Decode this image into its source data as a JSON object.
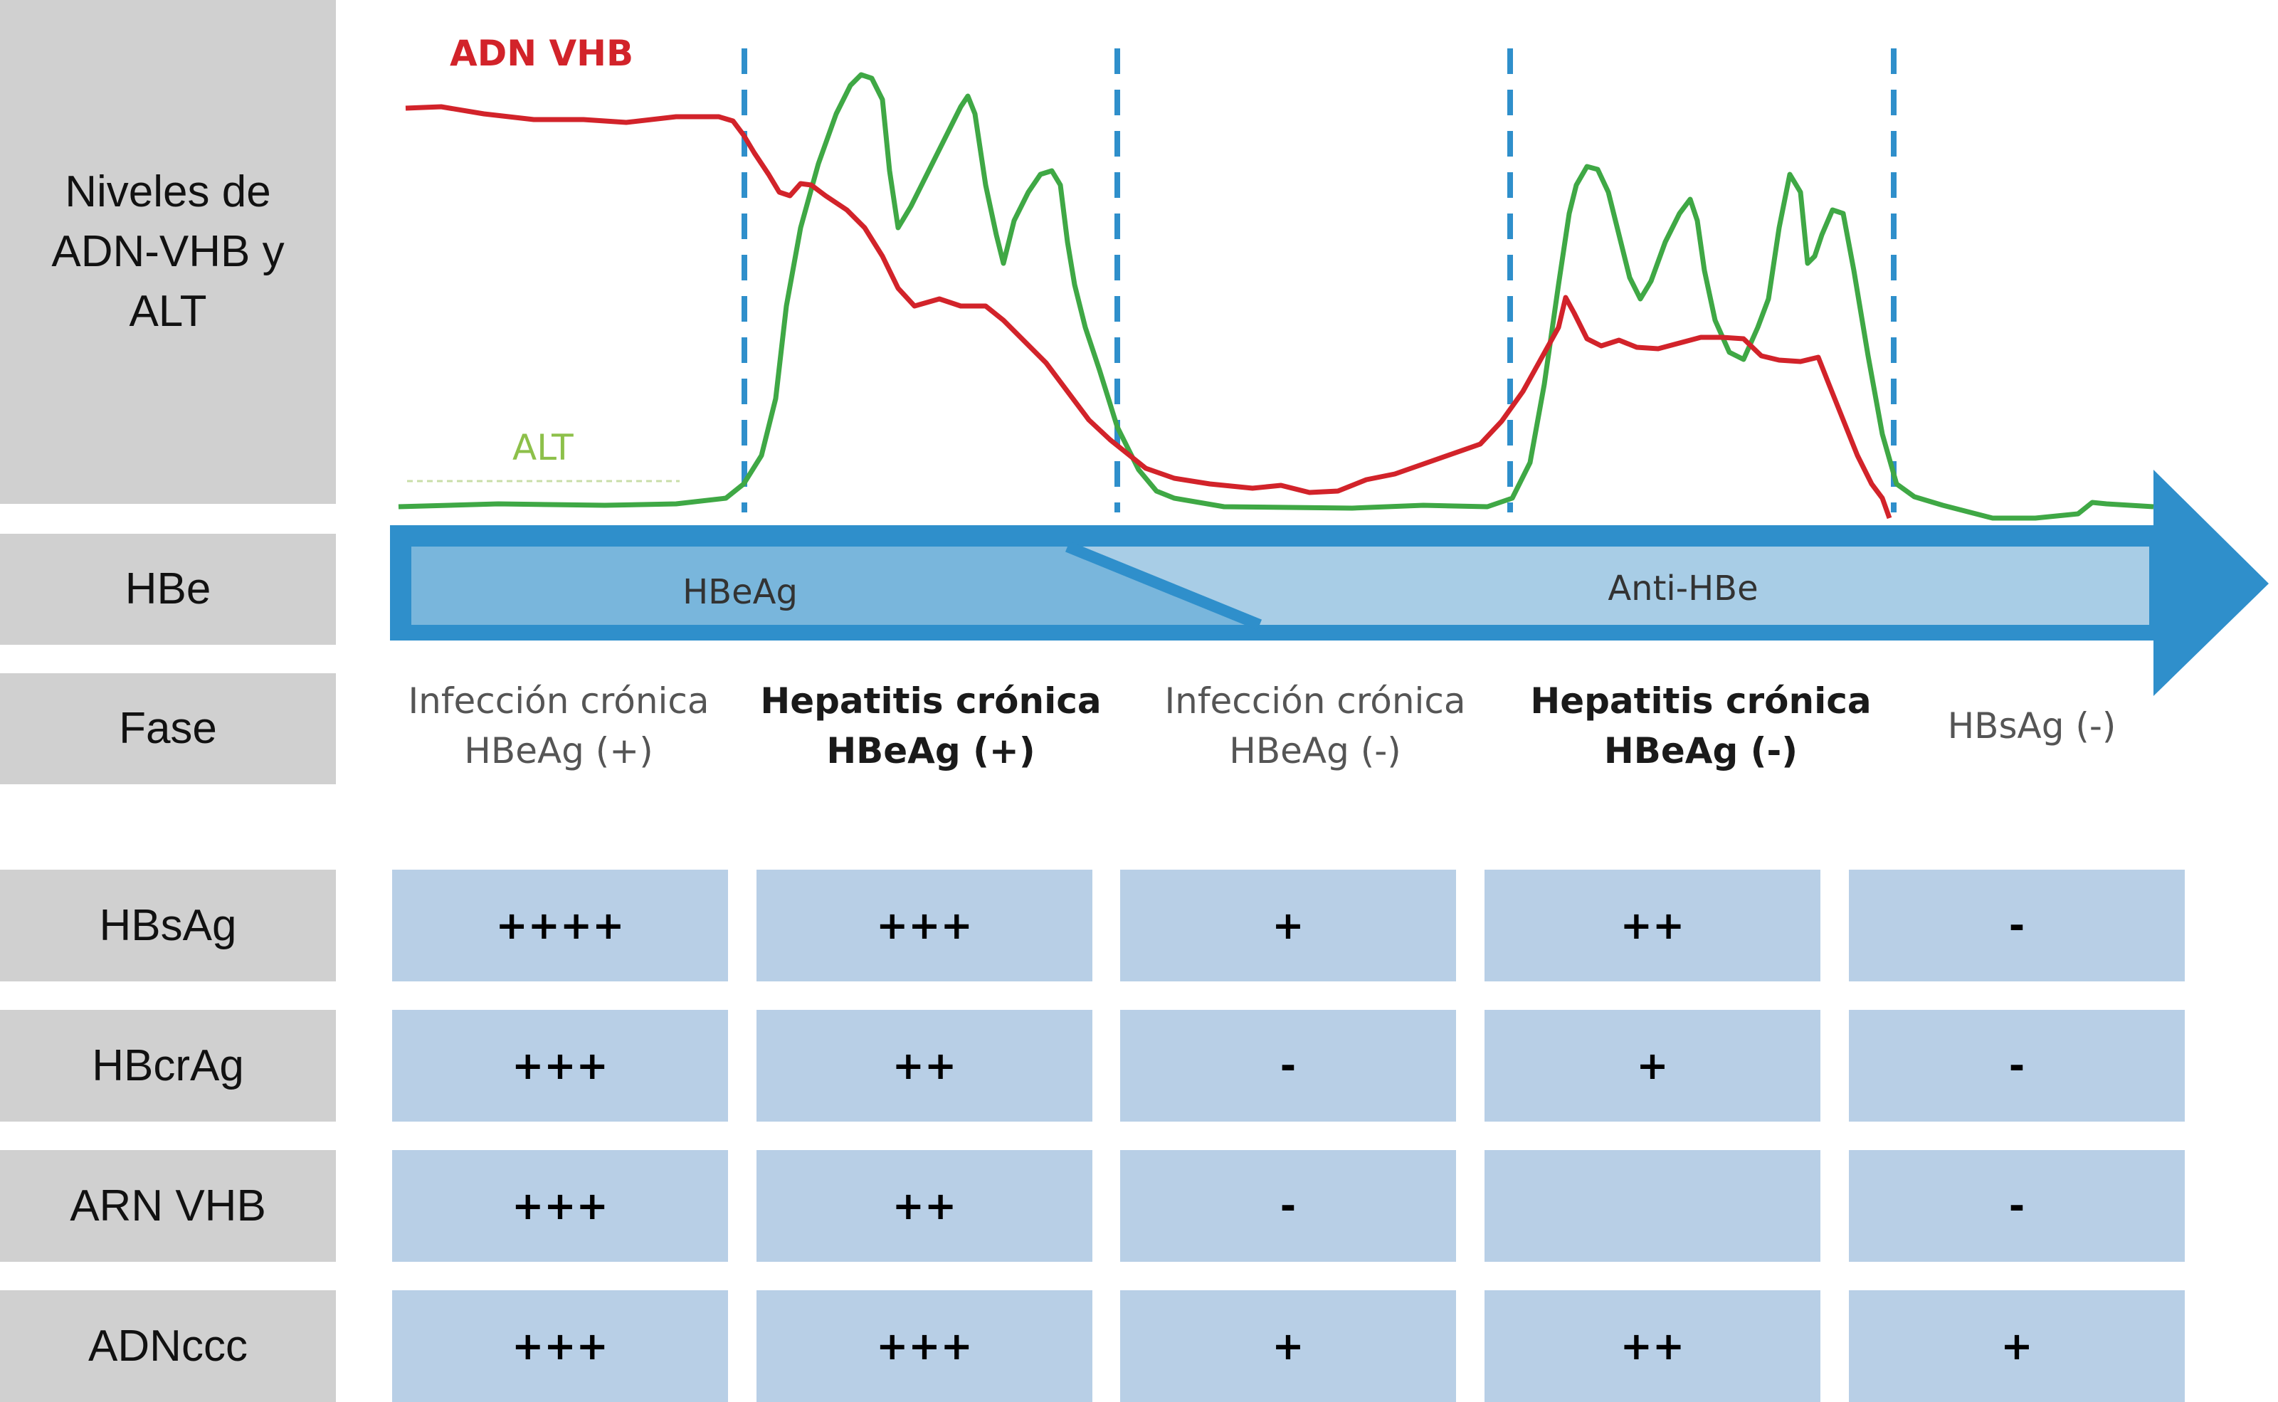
{
  "row_labels": {
    "niveles": "Niveles de\nADN-VHB y\nALT",
    "hbe": "HBe",
    "fase": "Fase"
  },
  "chart": {
    "dna_label": "ADN VHB",
    "alt_label": "ALT",
    "hbeag_label": "HBeAg",
    "antihbe_label": "Anti-HBe",
    "colors": {
      "dna": "#d2232a",
      "alt": "#3fa845",
      "alt_label": "#8dc04a",
      "arrow": "#2f8fcb",
      "arrow_light": "#a8cde6",
      "arrow_mid": "#79b6dc",
      "divider": "#2f8fcb"
    }
  },
  "phases": [
    {
      "text": "Infección crónica\nHBeAg (+)",
      "bold": false
    },
    {
      "text": "Hepatitis crónica\nHBeAg (+)",
      "bold": true
    },
    {
      "text": "Infección crónica\nHBeAg (-)",
      "bold": false
    },
    {
      "text": "Hepatitis crónica\nHBeAg (-)",
      "bold": true
    },
    {
      "text": "HBsAg (-)",
      "bold": false
    }
  ],
  "table": {
    "rows": [
      {
        "label": "HBsAg",
        "values": [
          "++++",
          "+++",
          "+",
          "++",
          "-"
        ]
      },
      {
        "label": "HBcrAg",
        "values": [
          "+++",
          "++",
          "-",
          "+",
          "-"
        ]
      },
      {
        "label": "ARN VHB",
        "values": [
          "+++",
          "++",
          "-",
          "",
          "-"
        ]
      },
      {
        "label": "ADNccc",
        "values": [
          "+++",
          "+++",
          "+",
          "++",
          "+"
        ]
      }
    ]
  }
}
